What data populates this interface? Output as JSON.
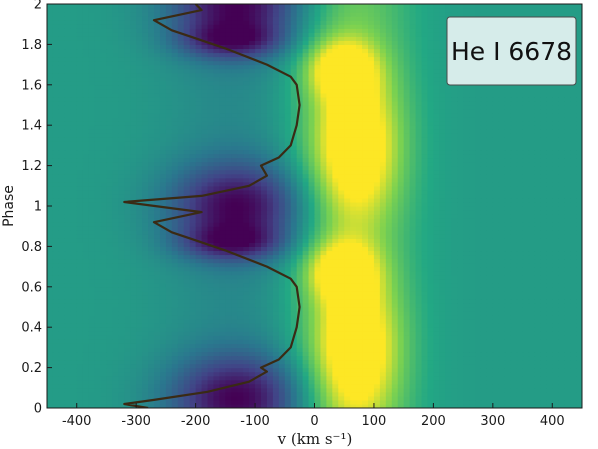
{
  "chart_data": {
    "type": "heatmap",
    "title": "",
    "annotation": "He I 6678",
    "xlabel": "v (km s⁻¹)",
    "ylabel": "Phase",
    "xlim": [
      -450,
      450
    ],
    "ylim": [
      0,
      2
    ],
    "x_ticks": [
      -400,
      -300,
      -200,
      -100,
      0,
      100,
      200,
      300,
      400
    ],
    "y_ticks": [
      0,
      0.2,
      0.4,
      0.6,
      0.8,
      1,
      1.2,
      1.4,
      1.6,
      1.8,
      2
    ],
    "colormap": "viridis",
    "colors": {
      "low": "#440154",
      "mid": "#21918c",
      "high": "#fde725",
      "background": "#2a9d8a",
      "curve": "#3a2a14",
      "legend_box": "#d6ecea"
    },
    "heatmap_features": [
      {
        "kind": "absorption",
        "v_center": -130,
        "v_width": 80,
        "phase_center": 0.05,
        "phase_width": 0.15,
        "strength": 0.95
      },
      {
        "kind": "absorption",
        "v_center": -130,
        "v_width": 80,
        "phase_center": 1.0,
        "phase_width": 0.15,
        "strength": 0.95
      },
      {
        "kind": "absorption",
        "v_center": -130,
        "v_width": 80,
        "phase_center": 2.0,
        "phase_width": 0.15,
        "strength": 0.95
      },
      {
        "kind": "absorption",
        "v_center": -140,
        "v_width": 60,
        "phase_center": 0.82,
        "phase_width": 0.06,
        "strength": 0.6
      },
      {
        "kind": "absorption",
        "v_center": -140,
        "v_width": 60,
        "phase_center": 1.82,
        "phase_width": 0.06,
        "strength": 0.6
      },
      {
        "kind": "emission",
        "v_center": 70,
        "v_width": 50,
        "phase_center": 0.3,
        "phase_width": 0.25,
        "strength": 0.9
      },
      {
        "kind": "emission",
        "v_center": 70,
        "v_width": 50,
        "phase_center": 1.3,
        "phase_width": 0.25,
        "strength": 0.9
      },
      {
        "kind": "emission",
        "v_center": 45,
        "v_width": 40,
        "phase_center": 0.68,
        "phase_width": 0.1,
        "strength": 0.8
      },
      {
        "kind": "emission",
        "v_center": 45,
        "v_width": 40,
        "phase_center": 1.68,
        "phase_width": 0.1,
        "strength": 0.8
      }
    ],
    "series": [
      {
        "points": [
          [
            -280,
            0.0
          ],
          [
            -320,
            0.02
          ],
          [
            -270,
            0.04
          ],
          [
            -180,
            0.08
          ],
          [
            -110,
            0.13
          ],
          [
            -80,
            0.18
          ],
          [
            -90,
            0.2
          ],
          [
            -60,
            0.24
          ],
          [
            -40,
            0.3
          ],
          [
            -30,
            0.4
          ],
          [
            -25,
            0.5
          ],
          [
            -30,
            0.6
          ],
          [
            -40,
            0.64
          ],
          [
            -80,
            0.7
          ],
          [
            -150,
            0.78
          ],
          [
            -200,
            0.83
          ],
          [
            -240,
            0.87
          ],
          [
            -270,
            0.92
          ],
          [
            -190,
            0.97
          ],
          [
            -320,
            1.02
          ],
          [
            -190,
            1.05
          ],
          [
            -110,
            1.1
          ],
          [
            -80,
            1.15
          ],
          [
            -90,
            1.2
          ],
          [
            -60,
            1.24
          ],
          [
            -40,
            1.3
          ],
          [
            -30,
            1.4
          ],
          [
            -25,
            1.5
          ],
          [
            -30,
            1.6
          ],
          [
            -40,
            1.64
          ],
          [
            -80,
            1.7
          ],
          [
            -150,
            1.78
          ],
          [
            -200,
            1.83
          ],
          [
            -240,
            1.87
          ],
          [
            -270,
            1.92
          ],
          [
            -190,
            1.97
          ],
          [
            -200,
            2.0
          ]
        ]
      }
    ]
  }
}
